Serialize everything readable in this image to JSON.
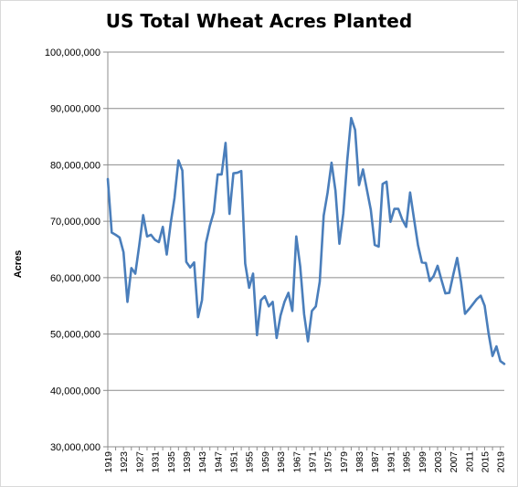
{
  "chart_data": {
    "type": "line",
    "title": "US Total Wheat Acres Planted",
    "xlabel": "",
    "ylabel": "Acres",
    "ylim": [
      30000000,
      100000000
    ],
    "yticks": [
      30000000,
      40000000,
      50000000,
      60000000,
      70000000,
      80000000,
      90000000,
      100000000
    ],
    "ytick_labels": [
      "30,000,000",
      "40,000,000",
      "50,000,000",
      "60,000,000",
      "70,000,000",
      "80,000,000",
      "90,000,000",
      "100,000,000"
    ],
    "xlim": [
      1919,
      2020
    ],
    "xticks": [
      1919,
      1923,
      1927,
      1931,
      1935,
      1939,
      1943,
      1947,
      1951,
      1955,
      1959,
      1963,
      1967,
      1971,
      1975,
      1979,
      1983,
      1987,
      1991,
      1995,
      1999,
      2003,
      2007,
      2011,
      2015,
      2019
    ],
    "xtick_labels": [
      "1919",
      "1923",
      "1927",
      "1931",
      "1935",
      "1939",
      "1943",
      "1947",
      "1951",
      "1955",
      "1959",
      "1963",
      "1967",
      "1971",
      "1975",
      "1979",
      "1983",
      "1987",
      "1991",
      "1995",
      "1999",
      "2003",
      "2007",
      "2011",
      "2015",
      "2019"
    ],
    "grid": true,
    "legend": "none",
    "colors": {
      "line": "#4a7ebb",
      "grid": "#8c8c8c",
      "axis": "#8c8c8c"
    },
    "x": [
      1919,
      1920,
      1921,
      1922,
      1923,
      1924,
      1925,
      1926,
      1927,
      1928,
      1929,
      1930,
      1931,
      1932,
      1933,
      1934,
      1935,
      1936,
      1937,
      1938,
      1939,
      1940,
      1941,
      1942,
      1943,
      1944,
      1945,
      1946,
      1947,
      1948,
      1949,
      1950,
      1951,
      1952,
      1953,
      1954,
      1955,
      1956,
      1957,
      1958,
      1959,
      1960,
      1961,
      1962,
      1963,
      1964,
      1965,
      1966,
      1967,
      1968,
      1969,
      1970,
      1971,
      1972,
      1973,
      1974,
      1975,
      1976,
      1977,
      1978,
      1979,
      1980,
      1981,
      1982,
      1983,
      1984,
      1985,
      1986,
      1987,
      1988,
      1989,
      1990,
      1991,
      1992,
      1993,
      1994,
      1995,
      1996,
      1997,
      1998,
      1999,
      2000,
      2001,
      2002,
      2003,
      2004,
      2005,
      2006,
      2007,
      2008,
      2009,
      2010,
      2011,
      2012,
      2013,
      2014,
      2015,
      2016,
      2017,
      2018,
      2019,
      2020
    ],
    "series": [
      {
        "values": [
          77500000,
          68000000,
          67600000,
          67100000,
          64500000,
          55700000,
          61700000,
          60700000,
          65700000,
          71100000,
          67300000,
          67600000,
          66700000,
          66300000,
          69000000,
          64100000,
          69600000,
          74100000,
          80800000,
          79000000,
          62800000,
          61800000,
          62700000,
          53000000,
          56000000,
          66100000,
          69200000,
          71600000,
          78300000,
          78300000,
          83900000,
          71300000,
          78500000,
          78600000,
          78900000,
          62500000,
          58200000,
          60700000,
          49800000,
          56000000,
          56700000,
          54900000,
          55700000,
          49300000,
          53300000,
          55700000,
          57300000,
          54100000,
          67300000,
          62000000,
          53500000,
          48700000,
          54100000,
          54900000,
          59300000,
          71000000,
          75100000,
          80400000,
          75400000,
          66000000,
          71400000,
          80800000,
          88300000,
          86200000,
          76400000,
          79200000,
          75600000,
          72000000,
          65800000,
          65500000,
          76600000,
          77000000,
          69900000,
          72200000,
          72200000,
          70300000,
          69000000,
          75100000,
          70400000,
          65800000,
          62700000,
          62600000,
          59400000,
          60300000,
          62100000,
          59600000,
          57200000,
          57300000,
          60500000,
          63500000,
          59200000,
          53600000,
          54400000,
          55300000,
          56200000,
          56800000,
          55000000,
          50100000,
          46100000,
          47800000,
          45200000,
          44700000
        ]
      }
    ]
  }
}
